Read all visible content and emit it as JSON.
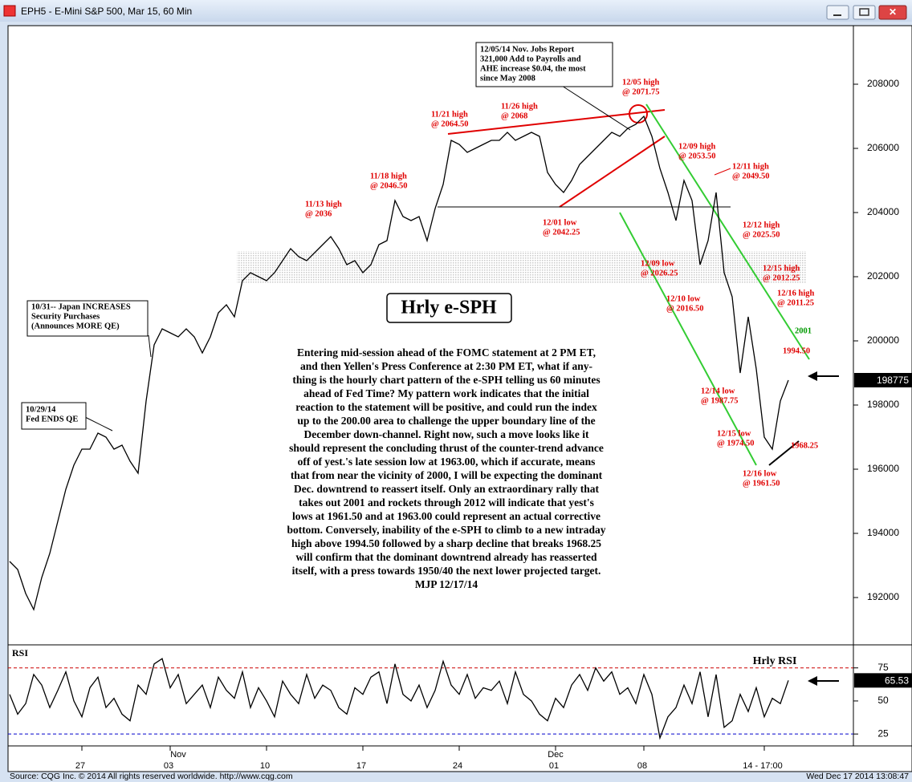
{
  "window": {
    "title": "EPH5 - E-Mini S&P 500, Mar 15, 60 Min"
  },
  "footer": {
    "source": "Source: CQG Inc. © 2014 All rights reserved worldwide. http://www.cqg.com",
    "timestamp": "Wed Dec 17 2014 13:08:47"
  },
  "chart_data": [
    {
      "type": "line",
      "title": "Hrly e-SPH",
      "categories": [
        null,
        null,
        null,
        null,
        null,
        null,
        null,
        null,
        null,
        "27",
        null,
        null,
        null,
        null,
        null,
        null,
        null,
        null,
        null,
        null,
        "03",
        null,
        null,
        null,
        null,
        null,
        null,
        null,
        null,
        null,
        null,
        null,
        "10",
        null,
        null,
        null,
        null,
        null,
        null,
        null,
        null,
        null,
        null,
        null,
        "17",
        null,
        null,
        null,
        null,
        null,
        null,
        null,
        null,
        null,
        null,
        null,
        "24",
        null,
        null,
        null,
        null,
        null,
        null,
        null,
        null,
        null,
        null,
        null,
        "01",
        null,
        null,
        null,
        null,
        null,
        null,
        null,
        null,
        null,
        null,
        "08",
        null,
        null,
        null,
        null,
        null,
        null,
        null,
        null,
        null,
        null,
        null,
        null,
        null,
        null,
        "14 - 17:00",
        null,
        null,
        null
      ],
      "month_labels": [
        null,
        null,
        null,
        null,
        null,
        null,
        null,
        null,
        null,
        null,
        null,
        null,
        null,
        null,
        null,
        null,
        null,
        null,
        null,
        null,
        null,
        "Nov",
        null,
        null,
        null,
        null,
        null,
        null,
        null,
        null,
        null,
        null,
        null,
        null,
        null,
        null,
        null,
        null,
        null,
        null,
        null,
        null,
        null,
        null,
        null,
        null,
        null,
        null,
        null,
        null,
        null,
        null,
        null,
        null,
        null,
        null,
        null,
        null,
        null,
        null,
        null,
        null,
        null,
        null,
        null,
        null,
        null,
        null,
        "Dec",
        null,
        null,
        null,
        null,
        null,
        null,
        null,
        null,
        null,
        null,
        null,
        null,
        null,
        null,
        null,
        null,
        null,
        null,
        null,
        null,
        null,
        null,
        null,
        null,
        null,
        null,
        null,
        null,
        null
      ],
      "series": [
        {
          "name": "EPH5",
          "color": "#000000",
          "values": [
            193125,
            192875,
            192125,
            191625,
            192625,
            193375,
            194375,
            195375,
            196125,
            196625,
            196625,
            197125,
            197000,
            196625,
            196750,
            196250,
            195875,
            198125,
            199875,
            200375,
            200250,
            200125,
            200375,
            200125,
            199625,
            200125,
            200875,
            201125,
            200750,
            201875,
            202125,
            202000,
            201875,
            202125,
            202500,
            202875,
            202625,
            202500,
            202750,
            203000,
            203250,
            202875,
            202375,
            202500,
            202125,
            202375,
            203000,
            203125,
            204375,
            203875,
            203750,
            203875,
            203125,
            204125,
            204875,
            206250,
            206125,
            205875,
            206000,
            206125,
            206250,
            206250,
            206500,
            206250,
            206375,
            206500,
            206375,
            205250,
            204875,
            204625,
            205000,
            205500,
            205750,
            206000,
            206250,
            206500,
            206375,
            206625,
            206750,
            207000,
            206375,
            205375,
            204625,
            203750,
            205000,
            204375,
            202375,
            203125,
            204625,
            202125,
            201375,
            199000,
            200750,
            199125,
            197000,
            196625,
            198125,
            198775
          ]
        }
      ],
      "ylim": [
        190550,
        209800
      ],
      "yticks": [
        192000,
        194000,
        196000,
        198000,
        200000,
        202000,
        204000,
        206000,
        208000
      ],
      "annotations": [
        {
          "lines": [
            "12/05/14 Nov. Jobs Report",
            "321,000 Add to Payrolls and",
            "AHE increase $0.04, the most",
            "since May 2008"
          ],
          "color": "#000000"
        },
        {
          "lines": [
            "12/05 high",
            "@ 2071.75"
          ],
          "color": "#e00000"
        },
        {
          "lines": [
            "11/21 high",
            "@ 2064.50"
          ],
          "color": "#e00000"
        },
        {
          "lines": [
            "11/26 high",
            "@ 2068"
          ],
          "color": "#e00000"
        },
        {
          "lines": [
            "11/18 high",
            "@ 2046.50"
          ],
          "color": "#e00000"
        },
        {
          "lines": [
            "11/13 high",
            "@ 2036"
          ],
          "color": "#e00000"
        },
        {
          "lines": [
            "12/09 high",
            "@ 2053.50"
          ],
          "color": "#e00000"
        },
        {
          "lines": [
            "12/11 high",
            "@ 2049.50"
          ],
          "color": "#e00000"
        },
        {
          "lines": [
            "12/01 low",
            "@ 2042.25"
          ],
          "color": "#e00000"
        },
        {
          "lines": [
            "12/12 high",
            "@ 2025.50"
          ],
          "color": "#e00000"
        },
        {
          "lines": [
            "12/09 low",
            "@ 2026.25"
          ],
          "color": "#e00000"
        },
        {
          "lines": [
            "12/15 high",
            "@ 2012.25"
          ],
          "color": "#e00000"
        },
        {
          "lines": [
            "12/10 low",
            "@ 2016.50"
          ],
          "color": "#e00000"
        },
        {
          "lines": [
            "12/16 high",
            "@ 2011.25"
          ],
          "color": "#e00000"
        },
        {
          "lines": [
            "2001"
          ],
          "color": "#009900"
        },
        {
          "lines": [
            "1994.50"
          ],
          "color": "#e00000"
        },
        {
          "lines": [
            "12/14 low",
            "@ 1987.75"
          ],
          "color": "#e00000"
        },
        {
          "lines": [
            "12/15 low",
            "@ 1974.50"
          ],
          "color": "#e00000"
        },
        {
          "lines": [
            "1968.25"
          ],
          "color": "#e00000"
        },
        {
          "lines": [
            "12/16 low",
            "@ 1961.50"
          ],
          "color": "#e00000"
        },
        {
          "lines": [
            "10/31-- Japan INCREASES",
            "Security Purchases",
            "(Announces MORE QE)"
          ],
          "color": "#000000"
        },
        {
          "lines": [
            "10/29/14",
            "Fed ENDS QE"
          ],
          "color": "#000000"
        }
      ],
      "commentary": [
        "Entering mid-session ahead of the FOMC statement at 2 PM ET,",
        "and then Yellen's Press Conference at 2:30 PM ET, what if any-",
        "thing is the hourly chart pattern of the e-SPH telling us 60 minutes",
        "ahead of Fed Time? My pattern work indicates that the initial",
        "reaction to the statement will be positive, and could run the index",
        "up to the 200.00 area to challenge the upper boundary line of the",
        "December down-channel. Right now, such a move looks like it",
        "should represent the concluding thrust of the counter-trend advance",
        "off of yest.'s late session low at 1963.00, which if accurate, means",
        "that from near the vicinity of 2000, I will be expecting the dominant",
        "Dec. downtrend to reassert itself. Only an extraordinary rally that",
        "takes out 2001 and rockets through 2012 will indicate that yest's",
        "lows at 1961.50 and at 1963.00 could represent an actual corrective",
        "bottom. Conversely, inability of the e-SPH to climb to a new intraday",
        "high above 1994.50 followed by a sharp decline that breaks 1968.25",
        "will confirm that the dominant downtrend already has reasserted",
        "itself, with a press towards 1950/40 the next lower projected target.",
        "MJP 12/17/14"
      ]
    },
    {
      "type": "line",
      "title": "Hrly RSI",
      "label": "RSI",
      "series": [
        {
          "name": "RSI",
          "color": "#000000",
          "values": [
            55,
            40,
            48,
            70,
            62,
            45,
            58,
            72,
            50,
            38,
            60,
            68,
            45,
            52,
            40,
            35,
            62,
            55,
            78,
            82,
            60,
            70,
            48,
            55,
            62,
            45,
            68,
            58,
            52,
            72,
            45,
            60,
            50,
            38,
            65,
            55,
            48,
            70,
            52,
            62,
            58,
            45,
            40,
            60,
            55,
            68,
            72,
            48,
            78,
            55,
            50,
            62,
            45,
            58,
            80,
            62,
            55,
            70,
            52,
            60,
            58,
            65,
            48,
            72,
            55,
            50,
            40,
            35,
            52,
            45,
            62,
            70,
            58,
            75,
            65,
            72,
            55,
            60,
            48,
            70,
            55,
            22,
            38,
            45,
            62,
            48,
            72,
            38,
            70,
            30,
            35,
            55,
            42,
            60,
            38,
            52,
            48,
            65.53
          ]
        }
      ],
      "ylim": [
        16,
        90
      ],
      "yticks": [
        25,
        50,
        75
      ],
      "reference_lines": [
        {
          "value": 75,
          "color": "#cc0000"
        },
        {
          "value": 25,
          "color": "#0000cc"
        }
      ]
    }
  ]
}
